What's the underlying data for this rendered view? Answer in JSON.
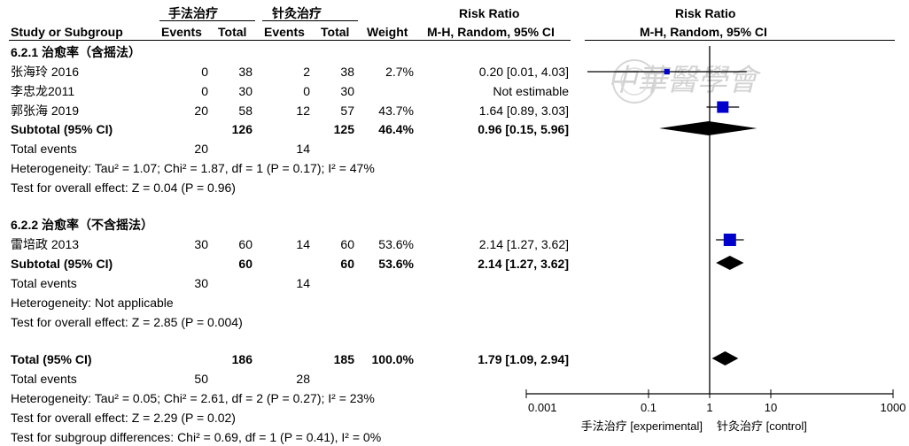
{
  "header": {
    "group_exp": "手法治疗",
    "group_ctrl": "针灸治疗",
    "study_col": "Study or Subgroup",
    "events": "Events",
    "total": "Total",
    "weight": "Weight",
    "rr_title": "Risk Ratio",
    "rr_method": "M-H, Random, 95% CI",
    "plot_title": "Risk Ratio",
    "plot_method": "M-H, Random, 95% CI"
  },
  "watermark": "中華醫學會",
  "subgroups": [
    {
      "title": "6.2.1 治愈率（含摇法）",
      "studies": [
        {
          "name": "张海玲 2016",
          "e_ev": "0",
          "e_tot": "38",
          "c_ev": "2",
          "c_tot": "38",
          "weight": "2.7%",
          "ci": "0.20 [0.01, 4.03]"
        },
        {
          "name": "李忠龙2011",
          "e_ev": "0",
          "e_tot": "30",
          "c_ev": "0",
          "c_tot": "30",
          "weight": "",
          "ci": "Not estimable"
        },
        {
          "name": "郭张海 2019",
          "e_ev": "20",
          "e_tot": "58",
          "c_ev": "12",
          "c_tot": "57",
          "weight": "43.7%",
          "ci": "1.64 [0.89, 3.03]"
        }
      ],
      "subtotal": {
        "label": "Subtotal (95% CI)",
        "e_tot": "126",
        "c_tot": "125",
        "weight": "46.4%",
        "ci": "0.96 [0.15, 5.96]"
      },
      "events": {
        "label": "Total events",
        "e": "20",
        "c": "14"
      },
      "heterogeneity": "Heterogeneity: Tau² = 1.07; Chi² = 1.87, df = 1 (P = 0.17); I² = 47%",
      "overall": "Test for overall effect: Z = 0.04 (P = 0.96)"
    },
    {
      "title": "6.2.2 治愈率（不含摇法）",
      "studies": [
        {
          "name": "雷培政 2013",
          "e_ev": "30",
          "e_tot": "60",
          "c_ev": "14",
          "c_tot": "60",
          "weight": "53.6%",
          "ci": "2.14 [1.27, 3.62]"
        }
      ],
      "subtotal": {
        "label": "Subtotal (95% CI)",
        "e_tot": "60",
        "c_tot": "60",
        "weight": "53.6%",
        "ci": "2.14 [1.27, 3.62]"
      },
      "events": {
        "label": "Total events",
        "e": "30",
        "c": "14"
      },
      "heterogeneity": "Heterogeneity: Not applicable",
      "overall": "Test for overall effect: Z = 2.85 (P = 0.004)"
    }
  ],
  "total": {
    "label": "Total (95% CI)",
    "e_tot": "186",
    "c_tot": "185",
    "weight": "100.0%",
    "ci": "1.79 [1.09, 2.94]",
    "events": {
      "label": "Total events",
      "e": "50",
      "c": "28"
    },
    "heterogeneity": "Heterogeneity: Tau² = 0.05; Chi² = 2.61, df = 2 (P = 0.27); I² = 23%",
    "overall": "Test for overall effect: Z = 2.29 (P = 0.02)",
    "subgroup_diff": "Test for subgroup differences: Chi² = 0.69, df = 1 (P = 0.41), I² = 0%"
  },
  "chart_data": {
    "type": "forest",
    "scale": "log",
    "xlim": [
      0.001,
      1000
    ],
    "ticks": [
      {
        "value": 0.001,
        "label": "0.001"
      },
      {
        "value": 0.1,
        "label": "0.1"
      },
      {
        "value": 1,
        "label": "1"
      },
      {
        "value": 10,
        "label": "10"
      },
      {
        "value": 1000,
        "label": "1000"
      }
    ],
    "label_left": "手法治疗 [experimental]",
    "label_right": "针灸治疗 [control]",
    "colors": {
      "square": "#0000cc",
      "diamond": "#000000"
    },
    "studies": [
      {
        "name": "张海玲 2016",
        "rr": 0.2,
        "lo": 0.01,
        "hi": 4.03,
        "weight": 2.7
      },
      {
        "name": "郭张海 2019",
        "rr": 1.64,
        "lo": 0.89,
        "hi": 3.03,
        "weight": 43.7
      },
      {
        "name": "雷培政 2013",
        "rr": 2.14,
        "lo": 1.27,
        "hi": 3.62,
        "weight": 53.6
      }
    ],
    "pooled": [
      {
        "name": "Subtotal 6.2.1",
        "rr": 0.96,
        "lo": 0.15,
        "hi": 5.96
      },
      {
        "name": "Subtotal 6.2.2",
        "rr": 2.14,
        "lo": 1.27,
        "hi": 3.62
      },
      {
        "name": "Total",
        "rr": 1.79,
        "lo": 1.09,
        "hi": 2.94
      }
    ]
  }
}
